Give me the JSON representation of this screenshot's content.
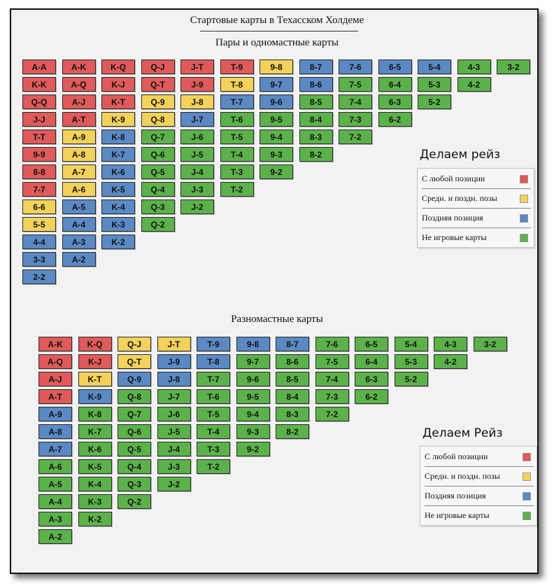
{
  "title": "Стартовые карты в Техасском Холдеме",
  "section1_title": "Пары и одномастные карты",
  "section2_title": "Разномастные карты",
  "colors": {
    "r": "#e05a5a",
    "y": "#f2d25b",
    "b": "#5a89c4",
    "g": "#5cb24a"
  },
  "legend1": {
    "title": "Делаем рейз",
    "items": [
      {
        "label": "С любой позиции",
        "color": "r"
      },
      {
        "label": "Средн. и поздн. позы",
        "color": "y"
      },
      {
        "label": "Поздняя позиция",
        "color": "b"
      },
      {
        "label": "Не игровые карты",
        "color": "g"
      }
    ]
  },
  "legend2": {
    "title": "Делаем Рейз",
    "items": [
      {
        "label": "С любой позиции",
        "color": "r"
      },
      {
        "label": "Средн. и поздн. позы",
        "color": "y"
      },
      {
        "label": "Поздняя позиция",
        "color": "b"
      },
      {
        "label": "Не игровые карты",
        "color": "g"
      }
    ]
  },
  "grid1": [
    [
      [
        "A-A",
        "r"
      ],
      [
        "K-K",
        "r"
      ],
      [
        "Q-Q",
        "r"
      ],
      [
        "J-J",
        "r"
      ],
      [
        "T-T",
        "r"
      ],
      [
        "9-9",
        "r"
      ],
      [
        "8-8",
        "r"
      ],
      [
        "7-7",
        "r"
      ],
      [
        "6-6",
        "y"
      ],
      [
        "5-5",
        "y"
      ],
      [
        "4-4",
        "b"
      ],
      [
        "3-3",
        "b"
      ],
      [
        "2-2",
        "b"
      ]
    ],
    [
      [
        "A-K",
        "r"
      ],
      [
        "A-Q",
        "r"
      ],
      [
        "A-J",
        "r"
      ],
      [
        "A-T",
        "r"
      ],
      [
        "A-9",
        "y"
      ],
      [
        "A-8",
        "y"
      ],
      [
        "A-7",
        "y"
      ],
      [
        "A-6",
        "y"
      ],
      [
        "A-5",
        "b"
      ],
      [
        "A-4",
        "b"
      ],
      [
        "A-3",
        "b"
      ],
      [
        "A-2",
        "b"
      ]
    ],
    [
      [
        "K-Q",
        "r"
      ],
      [
        "K-J",
        "r"
      ],
      [
        "K-T",
        "r"
      ],
      [
        "K-9",
        "y"
      ],
      [
        "K-8",
        "b"
      ],
      [
        "K-7",
        "b"
      ],
      [
        "K-6",
        "b"
      ],
      [
        "K-5",
        "b"
      ],
      [
        "K-4",
        "b"
      ],
      [
        "K-3",
        "b"
      ],
      [
        "K-2",
        "b"
      ]
    ],
    [
      [
        "Q-J",
        "r"
      ],
      [
        "Q-T",
        "r"
      ],
      [
        "Q-9",
        "y"
      ],
      [
        "Q-8",
        "y"
      ],
      [
        "Q-7",
        "g"
      ],
      [
        "Q-6",
        "g"
      ],
      [
        "Q-5",
        "g"
      ],
      [
        "Q-4",
        "g"
      ],
      [
        "Q-3",
        "g"
      ],
      [
        "Q-2",
        "g"
      ]
    ],
    [
      [
        "J-T",
        "r"
      ],
      [
        "J-9",
        "r"
      ],
      [
        "J-8",
        "y"
      ],
      [
        "J-7",
        "b"
      ],
      [
        "J-6",
        "g"
      ],
      [
        "J-5",
        "g"
      ],
      [
        "J-4",
        "g"
      ],
      [
        "J-3",
        "g"
      ],
      [
        "J-2",
        "g"
      ]
    ],
    [
      [
        "T-9",
        "r"
      ],
      [
        "T-8",
        "y"
      ],
      [
        "T-7",
        "b"
      ],
      [
        "T-6",
        "g"
      ],
      [
        "T-5",
        "g"
      ],
      [
        "T-4",
        "g"
      ],
      [
        "T-3",
        "g"
      ],
      [
        "T-2",
        "g"
      ]
    ],
    [
      [
        "9-8",
        "y"
      ],
      [
        "9-7",
        "b"
      ],
      [
        "9-6",
        "b"
      ],
      [
        "9-5",
        "g"
      ],
      [
        "9-4",
        "g"
      ],
      [
        "9-3",
        "g"
      ],
      [
        "9-2",
        "g"
      ]
    ],
    [
      [
        "8-7",
        "b"
      ],
      [
        "8-6",
        "b"
      ],
      [
        "8-5",
        "g"
      ],
      [
        "8-4",
        "g"
      ],
      [
        "8-3",
        "g"
      ],
      [
        "8-2",
        "g"
      ]
    ],
    [
      [
        "7-6",
        "b"
      ],
      [
        "7-5",
        "g"
      ],
      [
        "7-4",
        "g"
      ],
      [
        "7-3",
        "g"
      ],
      [
        "7-2",
        "g"
      ]
    ],
    [
      [
        "6-5",
        "b"
      ],
      [
        "6-4",
        "g"
      ],
      [
        "6-3",
        "g"
      ],
      [
        "6-2",
        "g"
      ]
    ],
    [
      [
        "5-4",
        "b"
      ],
      [
        "5-3",
        "g"
      ],
      [
        "5-2",
        "g"
      ]
    ],
    [
      [
        "4-3",
        "g"
      ],
      [
        "4-2",
        "g"
      ]
    ],
    [
      [
        "3-2",
        "g"
      ]
    ]
  ],
  "grid2": [
    [
      [
        "A-K",
        "r"
      ],
      [
        "A-Q",
        "r"
      ],
      [
        "A-J",
        "r"
      ],
      [
        "A-T",
        "r"
      ],
      [
        "A-9",
        "b"
      ],
      [
        "A-8",
        "b"
      ],
      [
        "A-7",
        "b"
      ],
      [
        "A-6",
        "g"
      ],
      [
        "A-5",
        "g"
      ],
      [
        "A-4",
        "g"
      ],
      [
        "A-3",
        "g"
      ],
      [
        "A-2",
        "g"
      ]
    ],
    [
      [
        "K-Q",
        "r"
      ],
      [
        "K-J",
        "r"
      ],
      [
        "K-T",
        "y"
      ],
      [
        "K-9",
        "b"
      ],
      [
        "K-8",
        "g"
      ],
      [
        "K-7",
        "g"
      ],
      [
        "K-6",
        "g"
      ],
      [
        "K-5",
        "g"
      ],
      [
        "K-4",
        "g"
      ],
      [
        "K-3",
        "g"
      ],
      [
        "K-2",
        "g"
      ]
    ],
    [
      [
        "Q-J",
        "y"
      ],
      [
        "Q-T",
        "y"
      ],
      [
        "Q-9",
        "b"
      ],
      [
        "Q-8",
        "g"
      ],
      [
        "Q-7",
        "g"
      ],
      [
        "Q-6",
        "g"
      ],
      [
        "Q-5",
        "g"
      ],
      [
        "Q-4",
        "g"
      ],
      [
        "Q-3",
        "g"
      ],
      [
        "Q-2",
        "g"
      ]
    ],
    [
      [
        "J-T",
        "y"
      ],
      [
        "J-9",
        "b"
      ],
      [
        "J-8",
        "b"
      ],
      [
        "J-7",
        "g"
      ],
      [
        "J-6",
        "g"
      ],
      [
        "J-5",
        "g"
      ],
      [
        "J-4",
        "g"
      ],
      [
        "J-3",
        "g"
      ],
      [
        "J-2",
        "g"
      ]
    ],
    [
      [
        "T-9",
        "b"
      ],
      [
        "T-8",
        "b"
      ],
      [
        "T-7",
        "g"
      ],
      [
        "T-6",
        "g"
      ],
      [
        "T-5",
        "g"
      ],
      [
        "T-4",
        "g"
      ],
      [
        "T-3",
        "g"
      ],
      [
        "T-2",
        "g"
      ]
    ],
    [
      [
        "9-8",
        "b"
      ],
      [
        "9-7",
        "g"
      ],
      [
        "9-6",
        "g"
      ],
      [
        "9-5",
        "g"
      ],
      [
        "9-4",
        "g"
      ],
      [
        "9-3",
        "g"
      ],
      [
        "9-2",
        "g"
      ]
    ],
    [
      [
        "8-7",
        "b"
      ],
      [
        "8-6",
        "g"
      ],
      [
        "8-5",
        "g"
      ],
      [
        "8-4",
        "g"
      ],
      [
        "8-3",
        "g"
      ],
      [
        "8-2",
        "g"
      ]
    ],
    [
      [
        "7-6",
        "g"
      ],
      [
        "7-5",
        "g"
      ],
      [
        "7-4",
        "g"
      ],
      [
        "7-3",
        "g"
      ],
      [
        "7-2",
        "g"
      ]
    ],
    [
      [
        "6-5",
        "g"
      ],
      [
        "6-4",
        "g"
      ],
      [
        "6-3",
        "g"
      ],
      [
        "6-2",
        "g"
      ]
    ],
    [
      [
        "5-4",
        "g"
      ],
      [
        "5-3",
        "g"
      ],
      [
        "5-2",
        "g"
      ]
    ],
    [
      [
        "4-3",
        "g"
      ],
      [
        "4-2",
        "g"
      ]
    ],
    [
      [
        "3-2",
        "g"
      ]
    ]
  ]
}
